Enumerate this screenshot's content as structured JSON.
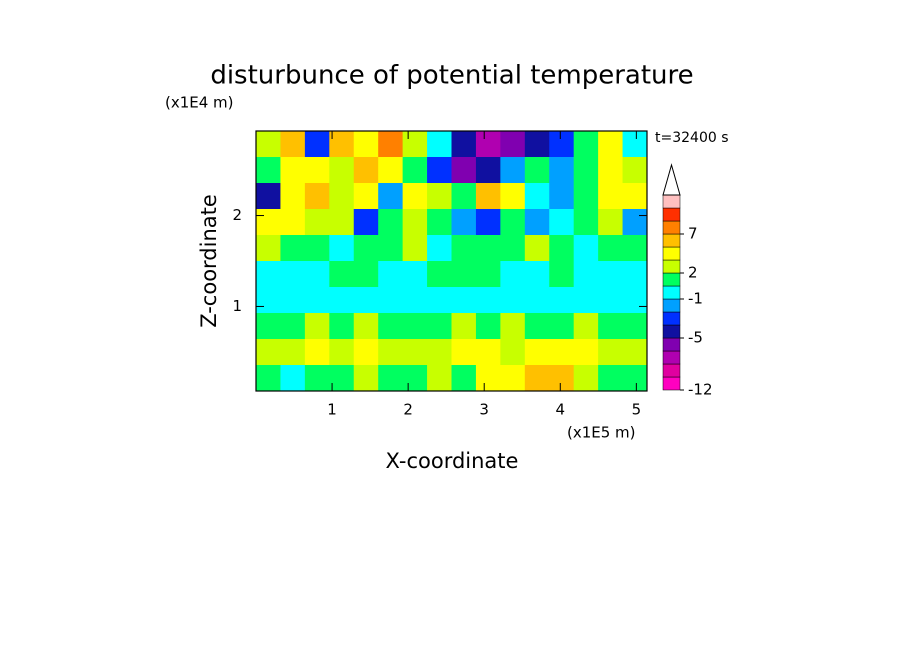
{
  "chart_data": {
    "type": "contour",
    "title": "disturbunce of potential temperature",
    "y_unit": "(x1E4 m)",
    "x_unit": "(x1E5 m)",
    "time_label": "t=32400 s",
    "xlabel": "X-coordinate",
    "ylabel": "Z-coordinate",
    "xlim": [
      0,
      5.14
    ],
    "ylim": [
      0.07,
      2.93
    ],
    "xticks": [
      1,
      2,
      3,
      4,
      5
    ],
    "yticks": [
      1,
      2
    ],
    "levels": [
      -12,
      -10,
      -8,
      -6,
      -5,
      -3,
      -2,
      -1,
      0,
      2,
      3,
      5,
      7,
      9,
      12,
      15
    ],
    "colors": [
      "#ff00c0",
      "#e000a0",
      "#b000b0",
      "#8000b0",
      "#1010a0",
      "#0030ff",
      "#00a0ff",
      "#00ffff",
      "#00ff60",
      "#c8ff00",
      "#ffff00",
      "#ffc000",
      "#ff8000",
      "#ff3000",
      "#ffc0c0"
    ],
    "colorbar_ticks": [
      -12,
      -5,
      -1,
      2,
      7
    ],
    "field": [
      [
        2,
        5,
        -3,
        5,
        3,
        7,
        2,
        -1,
        -5,
        -7,
        -6,
        -5,
        -3,
        0,
        3,
        -1
      ],
      [
        1,
        3,
        4,
        2,
        5,
        3,
        1,
        -3,
        -6,
        -5,
        -2,
        0,
        -2,
        1,
        3,
        2
      ],
      [
        -5,
        3,
        5,
        2,
        4,
        -2,
        3,
        2,
        1,
        5,
        3,
        -1,
        -2,
        0,
        4,
        3
      ],
      [
        3,
        4,
        2,
        2,
        -3,
        1,
        2,
        0,
        -2,
        -3,
        0,
        -2,
        -1,
        0,
        2,
        -2
      ],
      [
        2,
        1,
        0,
        -1,
        0,
        1,
        2,
        -1,
        1,
        0,
        1,
        2,
        0,
        -1,
        0,
        0
      ],
      [
        -1,
        -1,
        -1,
        0,
        0,
        -1,
        -1,
        0,
        1,
        0,
        -1,
        -1,
        0,
        -1,
        -1,
        -1
      ],
      [
        -1,
        -1,
        -1,
        -1,
        -1,
        -1,
        -1,
        -1,
        -1,
        -1,
        -1,
        -1,
        -1,
        -1,
        -1,
        -1
      ],
      [
        1,
        1,
        2,
        1,
        2,
        1,
        1,
        1,
        2,
        1,
        2,
        1,
        1,
        2,
        1,
        1
      ],
      [
        2,
        2,
        3,
        2,
        3,
        2,
        2,
        2,
        3,
        3,
        2,
        3,
        3,
        3,
        2,
        2
      ],
      [
        1,
        -1,
        1,
        1,
        2,
        1,
        1,
        2,
        1,
        3,
        3,
        5,
        5,
        2,
        1,
        1
      ]
    ]
  }
}
